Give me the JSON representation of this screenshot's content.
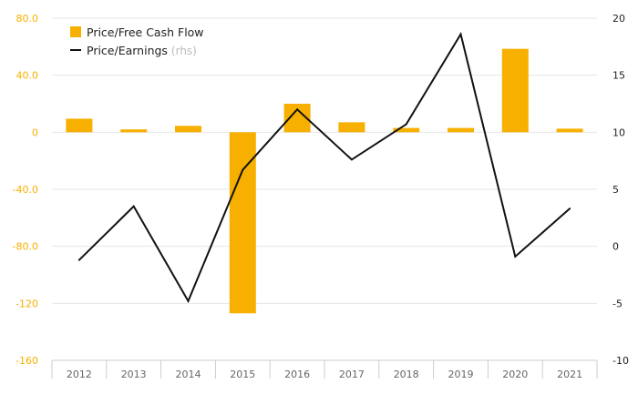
{
  "chart_data": {
    "type": "bar+line",
    "categories": [
      "2012",
      "2013",
      "2014",
      "2015",
      "2016",
      "2017",
      "2018",
      "2019",
      "2020",
      "2021"
    ],
    "series": [
      {
        "name": "Price/Free Cash Flow",
        "type": "bar",
        "axis": "left",
        "color": "#f7b000",
        "values": [
          9.5,
          2.0,
          4.5,
          -127.0,
          20.0,
          7.0,
          3.0,
          3.0,
          58.5,
          2.5
        ]
      },
      {
        "name": "Price/Earnings",
        "type": "line",
        "axis": "right",
        "color": "#111111",
        "values": [
          -1.2,
          3.5,
          -4.8,
          6.7,
          12.0,
          7.6,
          10.7,
          18.6,
          -0.9,
          3.3
        ]
      }
    ],
    "y_left": {
      "range": [
        -160,
        80
      ],
      "ticks": [
        80,
        40,
        0,
        -40,
        -80,
        -120,
        -160
      ],
      "tick_labels": [
        "80.0",
        "40.0",
        "0",
        "-40.0",
        "-80.0",
        "-120",
        "-160"
      ],
      "color": "#f7b000"
    },
    "y_right": {
      "range": [
        -10,
        20
      ],
      "ticks": [
        20,
        15,
        10,
        5,
        0,
        -5,
        -10
      ],
      "tick_labels": [
        "20",
        "15",
        "10",
        "5",
        "0",
        "-5",
        "-10"
      ]
    },
    "legend": {
      "placement": "top-left",
      "items": [
        {
          "label": "Price/Free Cash Flow",
          "suffix": "",
          "marker": "square",
          "color": "#f7b000"
        },
        {
          "label": "Price/Earnings",
          "suffix": "(rhs)",
          "marker": "line",
          "color": "#111111"
        }
      ]
    },
    "grid": true,
    "grid_color": "#e6e6e6"
  }
}
